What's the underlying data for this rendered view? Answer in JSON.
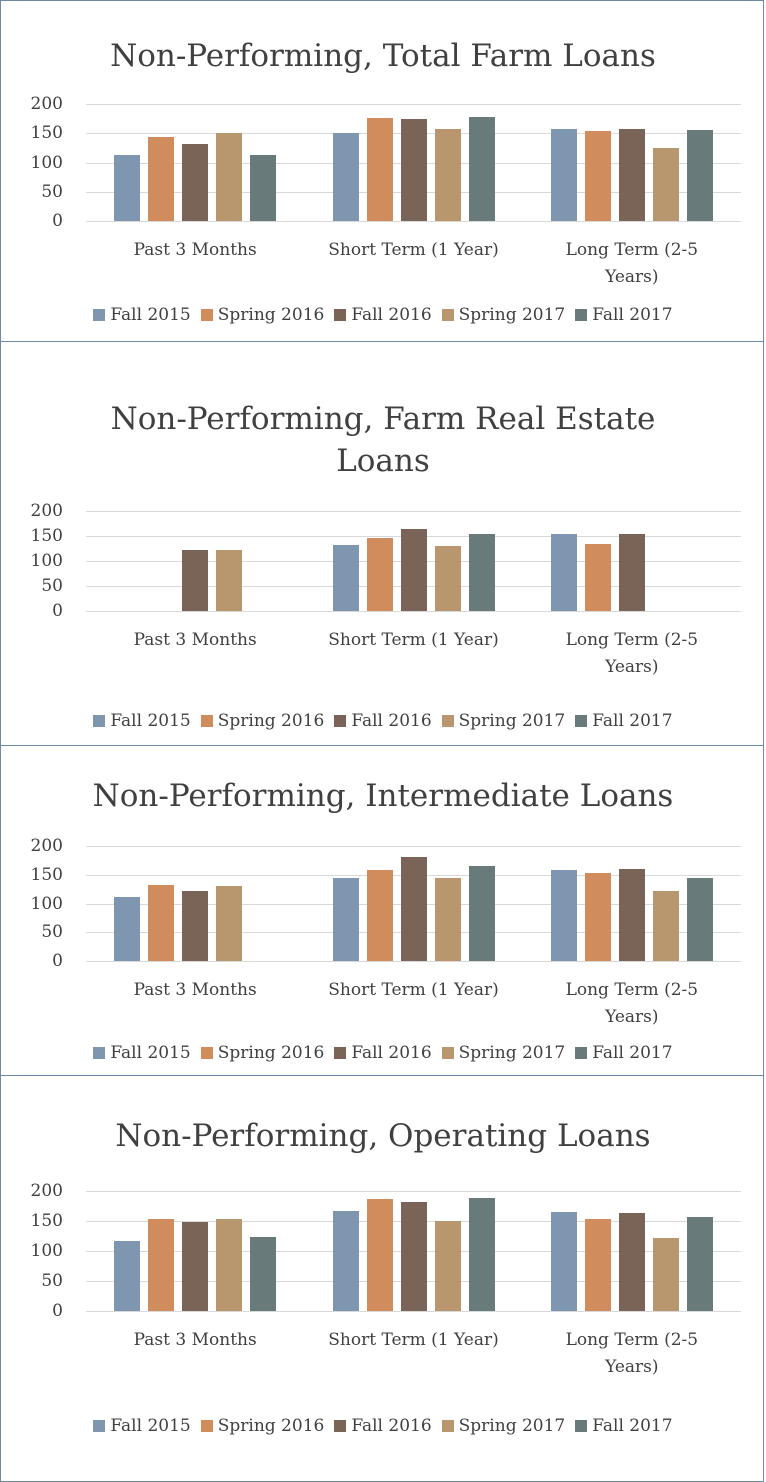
{
  "chart_data": [
    {
      "type": "bar",
      "title": "Non-Performing, Total Farm Loans",
      "categories": [
        "Past 3 Months",
        "Short Term (1 Year)",
        "Long Term (2-5 Years)"
      ],
      "series": [
        {
          "name": "Fall 2015",
          "color": "#7f96b0",
          "values": [
            112,
            150,
            157
          ]
        },
        {
          "name": "Spring 2016",
          "color": "#d08c5c",
          "values": [
            143,
            176,
            153
          ]
        },
        {
          "name": "Fall 2016",
          "color": "#7a6457",
          "values": [
            132,
            175,
            158
          ]
        },
        {
          "name": "Spring 2017",
          "color": "#b8976f",
          "values": [
            150,
            158,
            124
          ]
        },
        {
          "name": "Fall 2017",
          "color": "#687a7a",
          "values": [
            112,
            177,
            156
          ]
        }
      ],
      "ylim": [
        0,
        200
      ],
      "yticks": [
        0,
        50,
        100,
        150,
        200
      ],
      "grid": true,
      "legend": "bottom"
    },
    {
      "type": "bar",
      "title": "Non-Performing, Farm Real Estate Loans",
      "categories": [
        "Past 3 Months",
        "Short Term (1 Year)",
        "Long Term (2-5 Years)"
      ],
      "series": [
        {
          "name": "Fall 2015",
          "color": "#7f96b0",
          "values": [
            null,
            133,
            155
          ]
        },
        {
          "name": "Spring 2016",
          "color": "#d08c5c",
          "values": [
            null,
            147,
            135
          ]
        },
        {
          "name": "Fall 2016",
          "color": "#7a6457",
          "values": [
            123,
            165,
            155
          ]
        },
        {
          "name": "Spring 2017",
          "color": "#b8976f",
          "values": [
            122,
            130,
            null
          ]
        },
        {
          "name": "Fall 2017",
          "color": "#687a7a",
          "values": [
            null,
            155,
            null
          ]
        }
      ],
      "ylim": [
        0,
        200
      ],
      "yticks": [
        0,
        50,
        100,
        150,
        200
      ],
      "grid": true,
      "legend": "bottom"
    },
    {
      "type": "bar",
      "title": "Non-Performing, Intermediate Loans",
      "categories": [
        "Past 3 Months",
        "Short Term (1 Year)",
        "Long Term (2-5 Years)"
      ],
      "series": [
        {
          "name": "Fall 2015",
          "color": "#7f96b0",
          "values": [
            111,
            144,
            159
          ]
        },
        {
          "name": "Spring 2016",
          "color": "#d08c5c",
          "values": [
            133,
            159,
            153
          ]
        },
        {
          "name": "Fall 2016",
          "color": "#7a6457",
          "values": [
            121,
            181,
            160
          ]
        },
        {
          "name": "Spring 2017",
          "color": "#b8976f",
          "values": [
            131,
            145,
            121
          ]
        },
        {
          "name": "Fall 2017",
          "color": "#687a7a",
          "values": [
            null,
            166,
            144
          ]
        }
      ],
      "ylim": [
        0,
        200
      ],
      "yticks": [
        0,
        50,
        100,
        150,
        200
      ],
      "grid": true,
      "legend": "bottom"
    },
    {
      "type": "bar",
      "title": "Non-Performing, Operating Loans",
      "categories": [
        "Past 3 Months",
        "Short Term (1 Year)",
        "Long Term (2-5 Years)"
      ],
      "series": [
        {
          "name": "Fall 2015",
          "color": "#7f96b0",
          "values": [
            116,
            167,
            165
          ]
        },
        {
          "name": "Spring 2016",
          "color": "#d08c5c",
          "values": [
            153,
            186,
            153
          ]
        },
        {
          "name": "Fall 2016",
          "color": "#7a6457",
          "values": [
            148,
            182,
            164
          ]
        },
        {
          "name": "Spring 2017",
          "color": "#b8976f",
          "values": [
            154,
            150,
            121
          ]
        },
        {
          "name": "Fall 2017",
          "color": "#687a7a",
          "values": [
            124,
            188,
            156
          ]
        }
      ],
      "ylim": [
        0,
        200
      ],
      "yticks": [
        0,
        50,
        100,
        150,
        200
      ],
      "grid": true,
      "legend": "bottom"
    }
  ]
}
